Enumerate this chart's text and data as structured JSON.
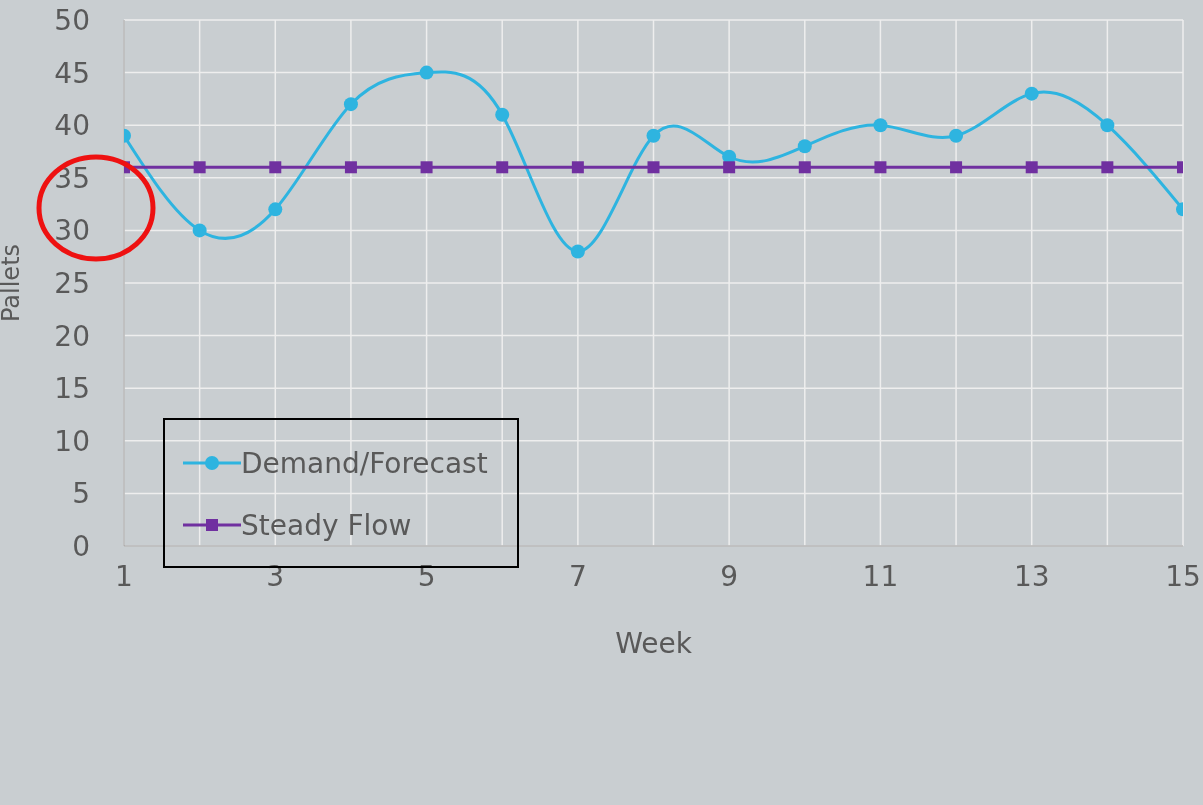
{
  "chart_data": {
    "type": "line",
    "xlabel": "Week",
    "ylabel": "Pallets",
    "x": [
      1,
      2,
      3,
      4,
      5,
      6,
      7,
      8,
      9,
      10,
      11,
      12,
      13,
      14,
      15
    ],
    "series": [
      {
        "name": "Demand/Forecast",
        "color": "#2eb4e0",
        "marker": "circle",
        "values": [
          39,
          30,
          32,
          42,
          45,
          41,
          28,
          39,
          37,
          38,
          40,
          39,
          43,
          40,
          32
        ]
      },
      {
        "name": "Steady Flow",
        "color": "#7030a0",
        "marker": "square",
        "values": [
          36,
          36,
          36,
          36,
          36,
          36,
          36,
          36,
          36,
          36,
          36,
          36,
          36,
          36,
          36
        ]
      }
    ],
    "xlim": [
      1,
      15
    ],
    "xticks": [
      1,
      {
        "value": 2,
        "label": null
      },
      3,
      {
        "value": 4,
        "label": null
      },
      5,
      {
        "value": 6,
        "label": null
      },
      7,
      {
        "value": 8,
        "label": null
      },
      9,
      {
        "value": 10,
        "label": null
      },
      11,
      {
        "value": 12,
        "label": null
      },
      13,
      {
        "value": 14,
        "label": null
      },
      15
    ],
    "ylim": [
      0,
      50
    ],
    "yticks": [
      0,
      5,
      10,
      15,
      20,
      25,
      30,
      35,
      40,
      45,
      50
    ],
    "grid": true,
    "legend": "left",
    "line_style": "solid"
  }
}
